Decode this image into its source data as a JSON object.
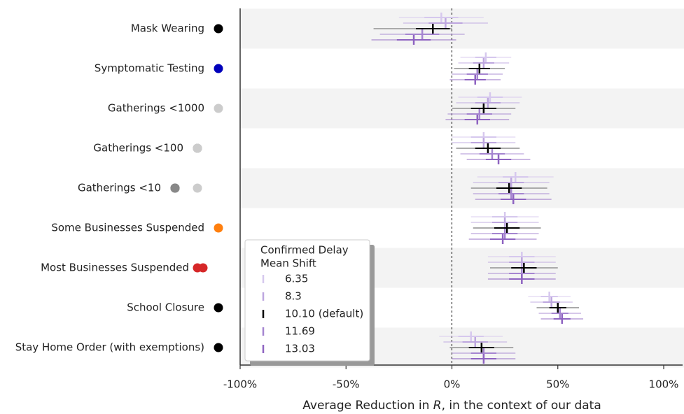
{
  "chart_data": {
    "type": "forest",
    "categories": [
      "Mask Wearing",
      "Symptomatic Testing",
      "Gatherings <1000",
      "Gatherings <100",
      "Gatherings <10",
      "Some Businesses Suspended",
      "Most Businesses Suspended",
      "School Closure",
      "Stay Home Order (with exemptions)"
    ],
    "category_colors": [
      "#000000",
      "#0000bb",
      "#cccccc",
      "#888888",
      "#000000",
      "#ff7f0e",
      "#d62728",
      "#000000",
      "#000000"
    ],
    "xlabel_parts": [
      "Average Reduction in ",
      "R",
      ", in the context of our data"
    ],
    "xlim": [
      -100,
      100
    ],
    "xticks": [
      {
        "value": -100,
        "label": "-100%"
      },
      {
        "value": -50,
        "label": "-50%"
      },
      {
        "value": 0,
        "label": "0%"
      },
      {
        "value": 50,
        "label": "50%"
      },
      {
        "value": 100,
        "label": "100%"
      }
    ],
    "legend_title": [
      "Confirmed Delay",
      "Mean Shift"
    ],
    "legend_position": "lower left",
    "series": [
      {
        "name": "6.35",
        "color": "#d6c8ee",
        "values": [
          -5,
          16,
          18,
          15,
          30,
          25,
          33,
          46,
          9
        ],
        "ci95": [
          [
            -25,
            15
          ],
          [
            4,
            28
          ],
          [
            3,
            33
          ],
          [
            0,
            30
          ],
          [
            12,
            48
          ],
          [
            9,
            41
          ],
          [
            17,
            49
          ],
          [
            36,
            56
          ],
          [
            -6,
            24
          ]
        ],
        "ci50": [
          [
            -13,
            3
          ],
          [
            11,
            21
          ],
          [
            12,
            24
          ],
          [
            9,
            21
          ],
          [
            24,
            36
          ],
          [
            19,
            31
          ],
          [
            27,
            39
          ],
          [
            42,
            50
          ],
          [
            3,
            15
          ]
        ]
      },
      {
        "name": "8.3",
        "color": "#bda6df",
        "values": [
          -3,
          15,
          17,
          15,
          28,
          25,
          33,
          47,
          11
        ],
        "ci95": [
          [
            -23,
            17
          ],
          [
            3,
            27
          ],
          [
            2,
            32
          ],
          [
            0,
            30
          ],
          [
            10,
            46
          ],
          [
            9,
            41
          ],
          [
            17,
            49
          ],
          [
            37,
            57
          ],
          [
            -4,
            26
          ]
        ],
        "ci50": [
          [
            -11,
            5
          ],
          [
            10,
            20
          ],
          [
            11,
            23
          ],
          [
            9,
            21
          ],
          [
            22,
            34
          ],
          [
            19,
            31
          ],
          [
            27,
            39
          ],
          [
            43,
            51
          ],
          [
            5,
            17
          ]
        ]
      },
      {
        "name": "10.10 (default)",
        "color": "#000000",
        "values": [
          -9,
          13,
          15,
          17,
          27,
          26,
          34,
          50,
          14
        ],
        "ci95": [
          [
            -37,
            0
          ],
          [
            1,
            25
          ],
          [
            0,
            30
          ],
          [
            2,
            32
          ],
          [
            9,
            45
          ],
          [
            10,
            42
          ],
          [
            18,
            50
          ],
          [
            40,
            60
          ],
          [
            -1,
            29
          ]
        ],
        "ci50": [
          [
            -17,
            -1
          ],
          [
            8,
            18
          ],
          [
            9,
            21
          ],
          [
            11,
            23
          ],
          [
            21,
            33
          ],
          [
            20,
            32
          ],
          [
            28,
            40
          ],
          [
            46,
            54
          ],
          [
            8,
            20
          ]
        ]
      },
      {
        "name": "11.69",
        "color": "#a585d0",
        "values": [
          -14,
          12,
          13,
          19,
          28,
          25,
          33,
          51,
          15
        ],
        "ci95": [
          [
            -34,
            6
          ],
          [
            0,
            24
          ],
          [
            -2,
            28
          ],
          [
            4,
            34
          ],
          [
            10,
            46
          ],
          [
            9,
            41
          ],
          [
            17,
            49
          ],
          [
            41,
            61
          ],
          [
            0,
            30
          ]
        ],
        "ci50": [
          [
            -22,
            -6
          ],
          [
            7,
            17
          ],
          [
            7,
            19
          ],
          [
            13,
            25
          ],
          [
            22,
            34
          ],
          [
            19,
            31
          ],
          [
            27,
            39
          ],
          [
            47,
            55
          ],
          [
            9,
            21
          ]
        ]
      },
      {
        "name": "13.03",
        "color": "#8e63c1",
        "values": [
          -18,
          11,
          12,
          22,
          29,
          24,
          33,
          52,
          15
        ],
        "ci95": [
          [
            -38,
            2
          ],
          [
            -1,
            23
          ],
          [
            -3,
            27
          ],
          [
            7,
            37
          ],
          [
            11,
            47
          ],
          [
            8,
            40
          ],
          [
            17,
            49
          ],
          [
            42,
            62
          ],
          [
            0,
            30
          ]
        ],
        "ci50": [
          [
            -26,
            -10
          ],
          [
            6,
            16
          ],
          [
            6,
            18
          ],
          [
            16,
            28
          ],
          [
            23,
            35
          ],
          [
            18,
            30
          ],
          [
            27,
            39
          ],
          [
            48,
            56
          ],
          [
            9,
            21
          ]
        ]
      }
    ]
  }
}
